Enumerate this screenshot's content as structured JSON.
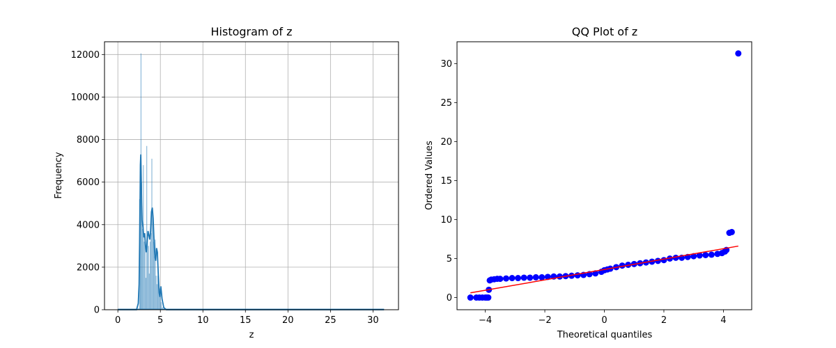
{
  "chart_data": [
    {
      "type": "histogram",
      "title": "Histogram of z",
      "xlabel": "z",
      "ylabel": "Frequency",
      "xlim": [
        -1.57,
        33.0
      ],
      "ylim": [
        0,
        12600
      ],
      "xticks": [
        0,
        5,
        10,
        15,
        20,
        25,
        30
      ],
      "yticks": [
        0,
        2000,
        4000,
        6000,
        8000,
        10000,
        12000
      ],
      "grid": true,
      "bar_color": "#1f77b4",
      "kde_color": "#1f77b4",
      "bars": [
        {
          "x": 2.55,
          "y": 5200
        },
        {
          "x": 2.65,
          "y": 7200
        },
        {
          "x": 2.72,
          "y": 12050
        },
        {
          "x": 2.8,
          "y": 6000
        },
        {
          "x": 2.9,
          "y": 3800
        },
        {
          "x": 3.0,
          "y": 6800
        },
        {
          "x": 3.1,
          "y": 3200
        },
        {
          "x": 3.2,
          "y": 3400
        },
        {
          "x": 3.3,
          "y": 1500
        },
        {
          "x": 3.4,
          "y": 7700
        },
        {
          "x": 3.5,
          "y": 3500
        },
        {
          "x": 3.6,
          "y": 3000
        },
        {
          "x": 3.7,
          "y": 1700
        },
        {
          "x": 3.8,
          "y": 3200
        },
        {
          "x": 3.9,
          "y": 3600
        },
        {
          "x": 4.0,
          "y": 7100
        },
        {
          "x": 4.1,
          "y": 4500
        },
        {
          "x": 4.2,
          "y": 3200
        },
        {
          "x": 4.3,
          "y": 2500
        },
        {
          "x": 4.4,
          "y": 3300
        },
        {
          "x": 4.5,
          "y": 1600
        },
        {
          "x": 4.6,
          "y": 1200
        },
        {
          "x": 4.7,
          "y": 1600
        },
        {
          "x": 4.8,
          "y": 1200
        },
        {
          "x": 4.9,
          "y": 1000
        },
        {
          "x": 5.0,
          "y": 700
        },
        {
          "x": 5.1,
          "y": 350
        },
        {
          "x": 5.25,
          "y": 120
        }
      ],
      "kde": {
        "x": [
          0,
          2.2,
          2.4,
          2.5,
          2.6,
          2.65,
          2.7,
          2.75,
          2.8,
          2.85,
          2.95,
          3.05,
          3.15,
          3.25,
          3.35,
          3.45,
          3.55,
          3.65,
          3.75,
          3.85,
          3.95,
          4.05,
          4.15,
          4.25,
          4.35,
          4.45,
          4.55,
          4.65,
          4.75,
          4.85,
          4.95,
          5.05,
          5.2,
          5.4,
          5.7,
          31.3
        ],
        "y": [
          0,
          0,
          300,
          1200,
          4500,
          6800,
          7300,
          6200,
          5000,
          4200,
          3900,
          3400,
          3600,
          3000,
          2700,
          3300,
          3700,
          3500,
          3300,
          3700,
          4600,
          4800,
          4300,
          3300,
          2500,
          2300,
          2900,
          2700,
          1700,
          800,
          600,
          1100,
          500,
          100,
          0,
          0
        ]
      }
    },
    {
      "type": "scatter",
      "title": "QQ Plot of z",
      "xlabel": "Theoretical quantiles",
      "ylabel": "Ordered Values",
      "xlim": [
        -4.95,
        4.95
      ],
      "ylim": [
        -1.56,
        32.8
      ],
      "xticks": [
        -4,
        -2,
        0,
        2,
        4
      ],
      "yticks": [
        0,
        5,
        10,
        15,
        20,
        25,
        30
      ],
      "grid": false,
      "point_color": "#0000ff",
      "line_color": "#ff0000",
      "fit_line": {
        "x": [
          -4.5,
          4.5
        ],
        "y": [
          0.6,
          6.6
        ]
      },
      "points_x": [
        -4.5,
        -4.3,
        -4.2,
        -4.1,
        -4.0,
        -3.95,
        -3.9,
        -3.88,
        -3.85,
        -3.8,
        -3.7,
        -3.6,
        -3.5,
        -3.3,
        -3.1,
        -2.9,
        -2.7,
        -2.5,
        -2.3,
        -2.1,
        -1.9,
        -1.7,
        -1.5,
        -1.3,
        -1.1,
        -0.9,
        -0.7,
        -0.5,
        -0.3,
        -0.1,
        0.0,
        0.1,
        0.2,
        0.4,
        0.6,
        0.8,
        1.0,
        1.2,
        1.4,
        1.6,
        1.8,
        2.0,
        2.2,
        2.4,
        2.6,
        2.8,
        3.0,
        3.2,
        3.4,
        3.6,
        3.8,
        3.95,
        4.05,
        4.1,
        4.2,
        4.28,
        4.5
      ],
      "points_y": [
        0.0,
        0.0,
        0.0,
        0.0,
        0.0,
        0.0,
        0.0,
        1.0,
        2.2,
        2.3,
        2.35,
        2.4,
        2.4,
        2.45,
        2.5,
        2.5,
        2.55,
        2.55,
        2.6,
        2.6,
        2.65,
        2.7,
        2.7,
        2.75,
        2.8,
        2.85,
        2.9,
        3.0,
        3.1,
        3.3,
        3.5,
        3.6,
        3.7,
        3.9,
        4.1,
        4.2,
        4.3,
        4.4,
        4.5,
        4.6,
        4.7,
        4.8,
        5.0,
        5.1,
        5.1,
        5.2,
        5.3,
        5.4,
        5.45,
        5.5,
        5.6,
        5.7,
        5.9,
        6.1,
        8.3,
        8.4,
        31.3
      ]
    }
  ]
}
